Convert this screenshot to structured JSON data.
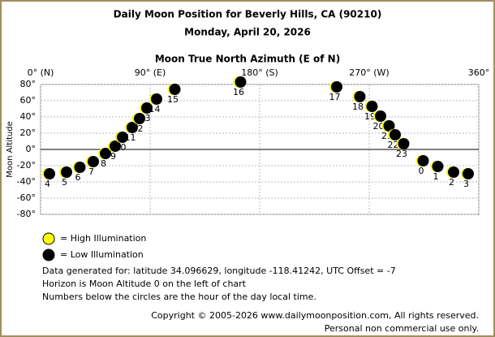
{
  "chart_data": {
    "type": "scatter",
    "title": "Daily Moon Position for Beverly Hills, CA (90210)",
    "subtitle": "Monday, April 20, 2026",
    "x_label": "Moon True North Azimuth (E of N)",
    "y_label": "Moon Altitude",
    "xlim": [
      0,
      360
    ],
    "ylim": [
      -80,
      80
    ],
    "xticks": [
      {
        "value": 0,
        "label": "0° (N)"
      },
      {
        "value": 90,
        "label": "90° (E)"
      },
      {
        "value": 180,
        "label": "180° (S)"
      },
      {
        "value": 270,
        "label": "270° (W)"
      },
      {
        "value": 360,
        "label": "360°"
      }
    ],
    "yticks": [
      {
        "value": 80,
        "label": "80°"
      },
      {
        "value": 60,
        "label": "60°"
      },
      {
        "value": 40,
        "label": "40°"
      },
      {
        "value": 20,
        "label": "20°"
      },
      {
        "value": 0,
        "label": "0°"
      },
      {
        "value": -20,
        "label": "-20°"
      },
      {
        "value": -40,
        "label": "-40°"
      },
      {
        "value": -60,
        "label": "-60°"
      },
      {
        "value": -80,
        "label": "-80°"
      }
    ],
    "grid": true,
    "series": [
      {
        "name": "Low Illumination",
        "color": "#000000",
        "crescent_color": "#ffff00",
        "x": [
          7,
          21,
          32,
          43,
          53,
          61,
          67,
          75,
          81,
          87,
          95,
          110,
          164,
          243,
          262,
          272,
          279,
          286,
          291,
          298,
          314,
          326,
          339,
          351
        ],
        "values": [
          -30,
          -28,
          -22,
          -15,
          -5,
          4,
          15,
          27,
          38,
          51,
          62,
          74,
          83,
          77,
          65,
          53,
          41,
          29,
          18,
          7,
          -14,
          -21,
          -28,
          -30
        ],
        "labels": [
          "4",
          "5",
          "6",
          "7",
          "8",
          "9",
          "10",
          "11",
          "12",
          "13",
          "14",
          "15",
          "16",
          "17",
          "18",
          "19",
          "20",
          "21",
          "22",
          "23",
          "0",
          "1",
          "2",
          "3"
        ]
      }
    ],
    "legend": [
      {
        "label": "= High Illumination",
        "color": "#ffff00"
      },
      {
        "label": "= Low Illumination",
        "color": "#000000"
      }
    ],
    "notes": [
      "Data generated for: latitude 34.096629, longitude -118.41242, UTC Offset = -7",
      "Horizon is Moon Altitude 0 on the left of chart",
      "Numbers below the circles are the hour of the day local time."
    ],
    "copyright": [
      "Copyright © 2005-2026 www.dailymoonposition.com, All rights reserved.",
      "Personal non commercial use only."
    ]
  }
}
